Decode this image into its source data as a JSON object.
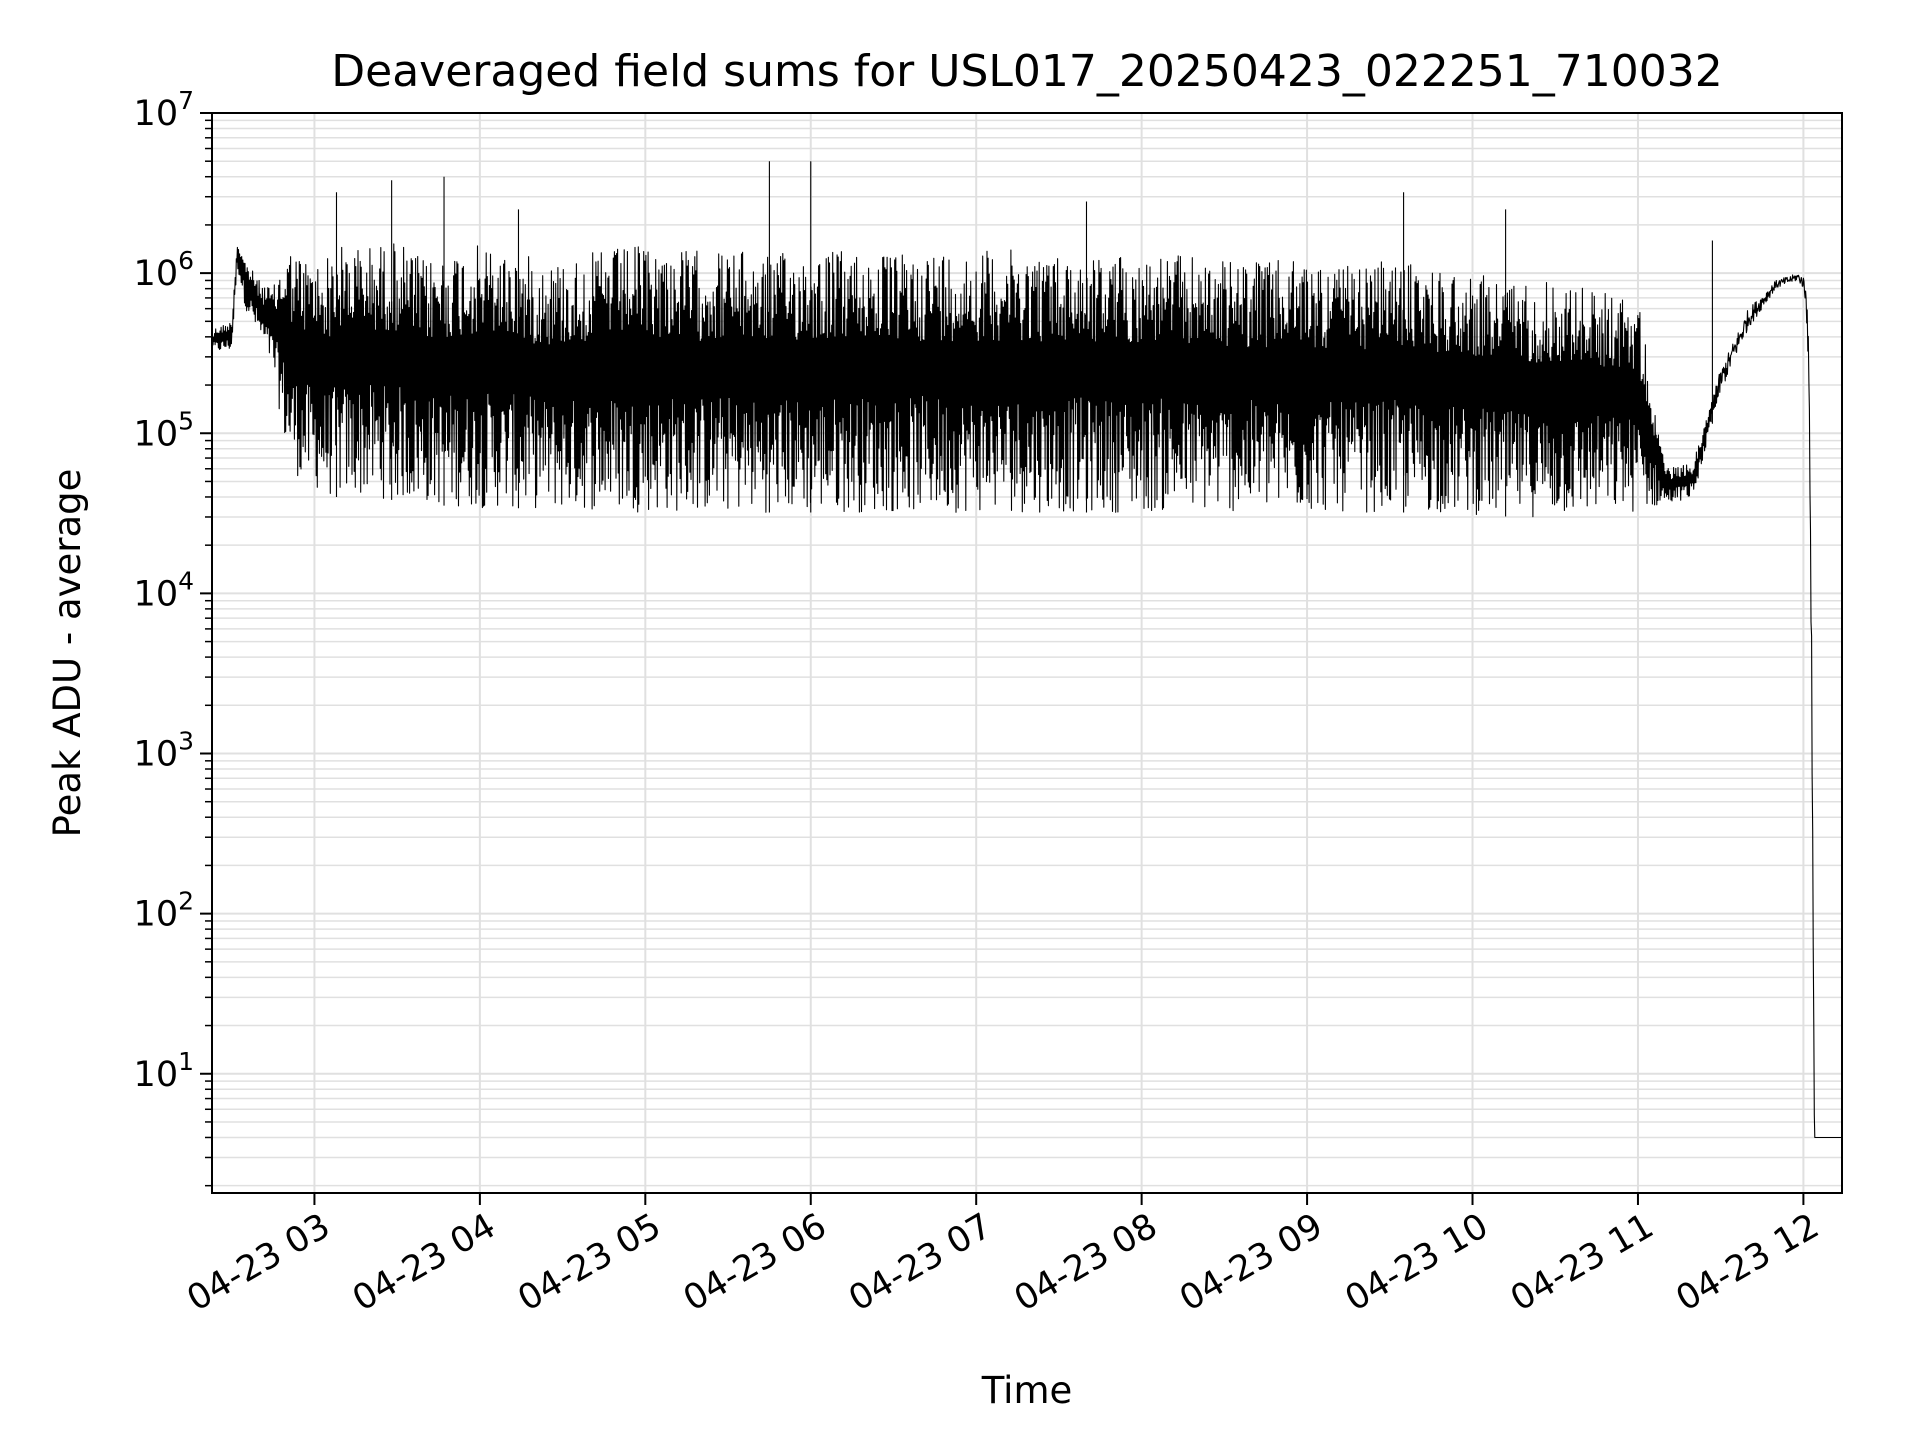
{
  "chart_data": {
    "type": "line",
    "title": "Deaveraged field sums for USL017_20250423_022251_710032",
    "xlabel": "Time",
    "ylabel": "Peak ADU - average",
    "yscale": "log",
    "grid": true,
    "legend": "none",
    "colors": {
      "line": "#000000",
      "grid": "#e0e0e0",
      "background": "#ffffff"
    },
    "xlim": [
      "2025-04-23 02:22:51",
      "2025-04-23 12:14:00"
    ],
    "ylim": [
      1.8,
      10000000
    ],
    "x_ticks": [
      {
        "value": "2025-04-23 03:00",
        "label": "04-23 03"
      },
      {
        "value": "2025-04-23 04:00",
        "label": "04-23 04"
      },
      {
        "value": "2025-04-23 05:00",
        "label": "04-23 05"
      },
      {
        "value": "2025-04-23 06:00",
        "label": "04-23 06"
      },
      {
        "value": "2025-04-23 07:00",
        "label": "04-23 07"
      },
      {
        "value": "2025-04-23 08:00",
        "label": "04-23 08"
      },
      {
        "value": "2025-04-23 09:00",
        "label": "04-23 09"
      },
      {
        "value": "2025-04-23 10:00",
        "label": "04-23 10"
      },
      {
        "value": "2025-04-23 11:00",
        "label": "04-23 11"
      },
      {
        "value": "2025-04-23 12:00",
        "label": "04-23 12"
      }
    ],
    "y_ticks": [
      {
        "value": 10,
        "base": "10",
        "exp": "1"
      },
      {
        "value": 100,
        "base": "10",
        "exp": "2"
      },
      {
        "value": 1000,
        "base": "10",
        "exp": "3"
      },
      {
        "value": 10000,
        "base": "10",
        "exp": "4"
      },
      {
        "value": 100000,
        "base": "10",
        "exp": "5"
      },
      {
        "value": 1000000,
        "base": "10",
        "exp": "6"
      },
      {
        "value": 10000000,
        "base": "10",
        "exp": "7"
      }
    ],
    "series": [
      {
        "description": "approximate sampled envelope of the dense signal",
        "x": [
          "2025-04-23 02:23",
          "2025-04-23 02:30",
          "2025-04-23 02:32",
          "2025-04-23 02:35",
          "2025-04-23 02:40",
          "2025-04-23 02:45",
          "2025-04-23 02:50",
          "2025-04-23 02:55",
          "2025-04-23 03:00",
          "2025-04-23 03:05",
          "2025-04-23 03:10",
          "2025-04-23 03:20",
          "2025-04-23 03:30",
          "2025-04-23 03:40",
          "2025-04-23 03:50",
          "2025-04-23 04:00",
          "2025-04-23 04:15",
          "2025-04-23 04:30",
          "2025-04-23 04:45",
          "2025-04-23 05:00",
          "2025-04-23 05:15",
          "2025-04-23 05:30",
          "2025-04-23 05:45",
          "2025-04-23 06:00",
          "2025-04-23 06:15",
          "2025-04-23 06:30",
          "2025-04-23 06:45",
          "2025-04-23 07:00",
          "2025-04-23 07:15",
          "2025-04-23 07:30",
          "2025-04-23 07:45",
          "2025-04-23 08:00",
          "2025-04-23 08:15",
          "2025-04-23 08:30",
          "2025-04-23 08:45",
          "2025-04-23 09:00",
          "2025-04-23 09:15",
          "2025-04-23 09:30",
          "2025-04-23 09:45",
          "2025-04-23 10:00",
          "2025-04-23 10:15",
          "2025-04-23 10:30",
          "2025-04-23 10:45",
          "2025-04-23 11:00",
          "2025-04-23 11:10",
          "2025-04-23 11:20",
          "2025-04-23 11:30",
          "2025-04-23 11:40",
          "2025-04-23 11:50",
          "2025-04-23 11:58",
          "2025-04-23 12:00",
          "2025-04-23 12:01",
          "2025-04-23 12:02",
          "2025-04-23 12:03",
          "2025-04-23 12:04",
          "2025-04-23 12:14"
        ],
        "y_high": [
          450000,
          500000,
          1600000,
          1200000,
          900000,
          800000,
          1500000,
          1300000,
          1200000,
          1300000,
          1500000,
          1500000,
          1600000,
          1200000,
          1400000,
          1500000,
          1300000,
          1200000,
          1400000,
          1500000,
          1400000,
          1400000,
          1300000,
          1400000,
          1400000,
          1300000,
          1400000,
          1400000,
          1400000,
          1300000,
          1300000,
          1300000,
          1300000,
          1200000,
          1200000,
          1200000,
          1100000,
          1200000,
          1100000,
          1000000,
          900000,
          900000,
          800000,
          700000,
          60000,
          65000,
          250000,
          600000,
          900000,
          1000000,
          950000,
          800000,
          400000,
          5000,
          4,
          4
        ],
        "y_low": [
          320000,
          330000,
          1100000,
          600000,
          400000,
          250000,
          70000,
          50000,
          45000,
          40000,
          40000,
          40000,
          38000,
          36000,
          35000,
          34000,
          34000,
          33000,
          33000,
          32000,
          32000,
          32000,
          32000,
          32000,
          32000,
          32000,
          32000,
          32000,
          32000,
          32000,
          32000,
          32000,
          32000,
          32000,
          32000,
          32000,
          32000,
          32000,
          32000,
          31000,
          30000,
          30000,
          31000,
          32000,
          36000,
          40000,
          180000,
          450000,
          800000,
          900000,
          800000,
          600000,
          200000,
          2000,
          4,
          4
        ]
      }
    ]
  }
}
